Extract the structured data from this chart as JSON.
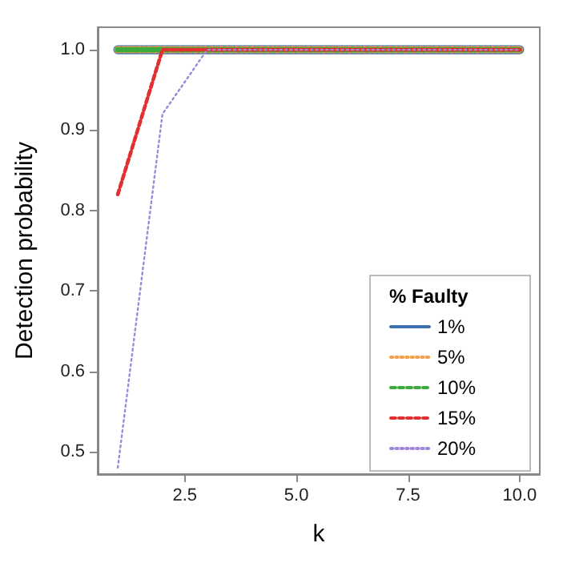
{
  "chart_data": {
    "type": "line",
    "xlabel": "k",
    "ylabel": "Detection probability",
    "legend_title": "% Faulty",
    "legend": "bottom right",
    "grid": false,
    "marker": "none",
    "x": [
      1,
      2,
      3,
      4,
      5,
      6,
      7,
      8,
      9,
      10
    ],
    "xlim": [
      0.55,
      10.45
    ],
    "xticks": [
      2.5,
      {
        "value": 5,
        "label": "5.0"
      },
      7.5,
      {
        "value": 10,
        "label": "10.0"
      }
    ],
    "ylim": [
      0.472,
      1.028
    ],
    "yticks": [
      0.5,
      0.6,
      0.7,
      0.8,
      0.9,
      {
        "value": 1,
        "label": "1.0"
      }
    ],
    "series": [
      {
        "name": "1%",
        "color": "#3b70ad",
        "line_style": "solid",
        "values": [
          1,
          1,
          1,
          1,
          1,
          1,
          1,
          1,
          1,
          1
        ]
      },
      {
        "name": "5%",
        "color": "#f5a04a",
        "line_style": "dotted",
        "values": [
          1,
          1,
          1,
          1,
          1,
          1,
          1,
          1,
          1,
          1
        ]
      },
      {
        "name": "10%",
        "color": "#3daa3d",
        "line_style": "dashed",
        "values": [
          1,
          1,
          1,
          1,
          1,
          1,
          1,
          1,
          1,
          1
        ]
      },
      {
        "name": "15%",
        "color": "#e03030",
        "line_style": "dashed",
        "values": [
          0.82,
          1,
          1,
          1,
          1,
          1,
          1,
          1,
          1,
          1
        ]
      },
      {
        "name": "20%",
        "color": "#a088d8",
        "line_style": "dotted",
        "values": [
          0.48,
          0.92,
          1,
          1,
          1,
          1,
          1,
          1,
          1,
          1
        ]
      }
    ]
  }
}
